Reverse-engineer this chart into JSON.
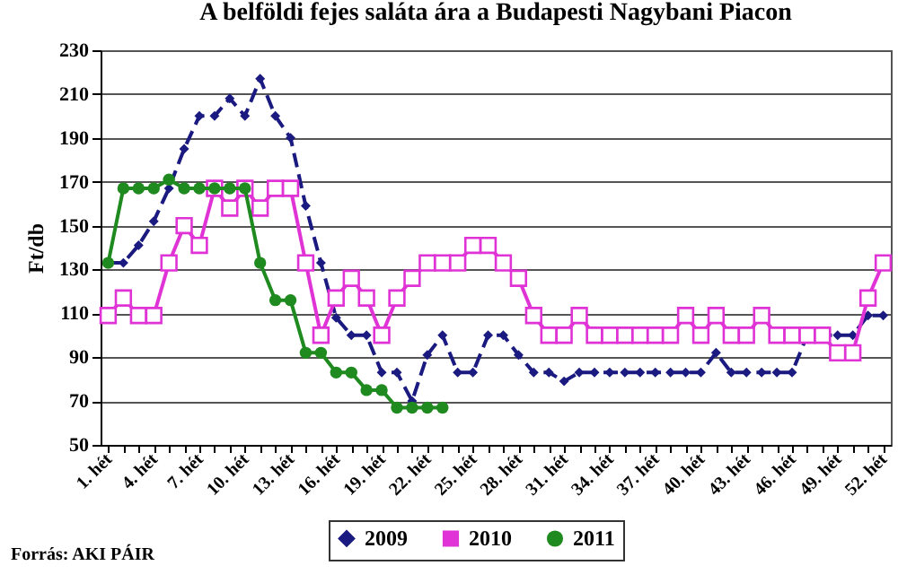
{
  "chart_data": {
    "type": "line",
    "title": "A belföldi fejes saláta ára a Budapesti Nagybani Piacon",
    "ylabel": "Ft/db",
    "annotations": [
      "Forrás: AKI PÁIR"
    ],
    "categories": [
      "1. hét",
      null,
      null,
      "4. hét",
      null,
      null,
      "7. hét",
      null,
      null,
      "10. hét",
      null,
      null,
      "13. hét",
      null,
      null,
      "16. hét",
      null,
      null,
      "19. hét",
      null,
      null,
      "22. hét",
      null,
      null,
      "25. hét",
      null,
      null,
      "28. hét",
      null,
      null,
      "31. hét",
      null,
      null,
      "34. hét",
      null,
      null,
      "37. hét",
      null,
      null,
      "40. hét",
      null,
      null,
      "43. hét",
      null,
      null,
      "46. hét",
      null,
      null,
      "49. hét",
      null,
      null,
      "52. hét"
    ],
    "series": [
      {
        "name": "2009",
        "color": "#1a1a80",
        "marker": "diamond",
        "line_style": "dashed",
        "values": [
          133,
          133,
          141,
          152,
          167,
          185,
          200,
          200,
          208,
          200,
          217,
          200,
          190,
          159,
          133,
          108,
          100,
          100,
          83,
          83,
          70,
          91,
          100,
          83,
          83,
          100,
          100,
          91,
          83,
          83,
          79,
          83,
          83,
          83,
          83,
          83,
          83,
          83,
          83,
          83,
          92,
          83,
          83,
          83,
          83,
          83,
          100,
          100,
          100,
          100,
          109,
          109
        ]
      },
      {
        "name": "2010",
        "color": "#e033d6",
        "marker": "square",
        "line_style": "solid",
        "values": [
          109,
          117,
          109,
          109,
          133,
          150,
          141,
          167,
          158,
          167,
          158,
          167,
          167,
          133,
          100,
          117,
          126,
          117,
          100,
          117,
          126,
          133,
          133,
          133,
          141,
          141,
          133,
          126,
          109,
          100,
          100,
          109,
          100,
          100,
          100,
          100,
          100,
          100,
          109,
          100,
          109,
          100,
          100,
          109,
          100,
          100,
          100,
          100,
          92,
          92,
          117,
          133
        ]
      },
      {
        "name": "2011",
        "color": "#1f8a1f",
        "marker": "circle",
        "line_style": "solid",
        "values": [
          133,
          167,
          167,
          167,
          171,
          167,
          167,
          167,
          167,
          167,
          133,
          116,
          116,
          92,
          92,
          83,
          83,
          75,
          75,
          67,
          67,
          67,
          67,
          null,
          null,
          null,
          null,
          null,
          null,
          null,
          null,
          null,
          null,
          null,
          null,
          null,
          null,
          null,
          null,
          null,
          null,
          null,
          null,
          null,
          null,
          null,
          null,
          null,
          null,
          null,
          null,
          null
        ]
      }
    ],
    "ylim": [
      50,
      230
    ],
    "yticks": [
      50,
      70,
      90,
      110,
      130,
      150,
      170,
      190,
      210,
      230
    ],
    "grid": "y",
    "legend": "bottom"
  }
}
